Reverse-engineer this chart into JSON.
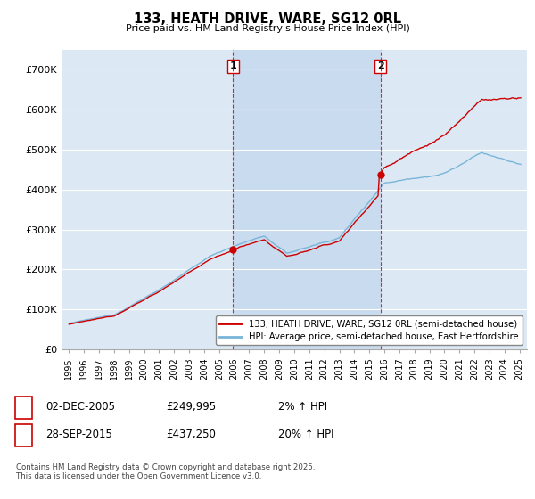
{
  "title": "133, HEATH DRIVE, WARE, SG12 0RL",
  "subtitle": "Price paid vs. HM Land Registry's House Price Index (HPI)",
  "ylim": [
    0,
    750000
  ],
  "yticks": [
    0,
    100000,
    200000,
    300000,
    400000,
    500000,
    600000,
    700000
  ],
  "ytick_labels": [
    "£0",
    "£100K",
    "£200K",
    "£300K",
    "£400K",
    "£500K",
    "£600K",
    "£700K"
  ],
  "xlim_start": 1994.5,
  "xlim_end": 2025.5,
  "plot_bg": "#dce9f5",
  "shade_color": "#c5d9ee",
  "grid_color": "#ffffff",
  "hpi_color": "#7ab4d8",
  "price_color": "#cc0000",
  "transaction1_x": 2005.917,
  "transaction1_y": 249995,
  "transaction2_x": 2015.748,
  "transaction2_y": 437250,
  "vline_color": "#cc0000",
  "legend_label_price": "133, HEATH DRIVE, WARE, SG12 0RL (semi-detached house)",
  "legend_label_hpi": "HPI: Average price, semi-detached house, East Hertfordshire",
  "copyright": "Contains HM Land Registry data © Crown copyright and database right 2025.\nThis data is licensed under the Open Government Licence v3.0."
}
